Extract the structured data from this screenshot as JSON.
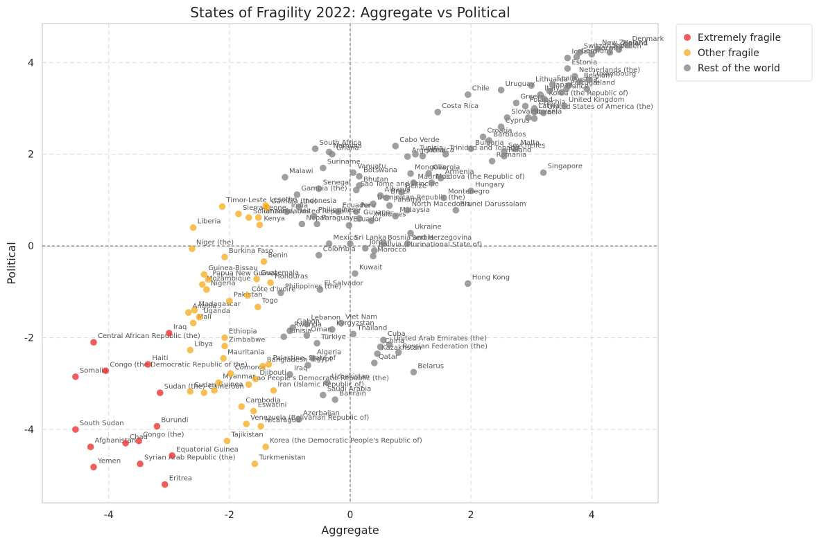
{
  "chart_data": {
    "type": "scatter",
    "title": "States of Fragility 2022: Aggregate vs Political",
    "xlabel": "Aggregate",
    "ylabel": "Political",
    "xlim": [
      -5.1,
      5.1
    ],
    "ylim": [
      -5.6,
      4.85
    ],
    "xticks": [
      -4,
      -2,
      0,
      2,
      4
    ],
    "yticks": [
      -4,
      -2,
      0,
      2,
      4
    ],
    "grid": true,
    "legend_position": "outside-top-right",
    "series": [
      {
        "name": "Extremely fragile",
        "color": "#e8282a",
        "points": [
          {
            "label": "Central African Republic (the)",
            "x": -4.25,
            "y": -2.1
          },
          {
            "label": "Somalia",
            "x": -4.55,
            "y": -2.85
          },
          {
            "label": "Congo (the Democratic Republic of the)",
            "x": -4.05,
            "y": -2.72
          },
          {
            "label": "Iraq",
            "x": -3.0,
            "y": -1.9
          },
          {
            "label": "Haiti",
            "x": -3.35,
            "y": -2.58
          },
          {
            "label": "Sudan (the)",
            "x": -3.15,
            "y": -3.2
          },
          {
            "label": "South Sudan",
            "x": -4.55,
            "y": -4.0
          },
          {
            "label": "Burundi",
            "x": -3.2,
            "y": -3.93
          },
          {
            "label": "Chad",
            "x": -3.72,
            "y": -4.3
          },
          {
            "label": "Congo (the)",
            "x": -3.5,
            "y": -4.25
          },
          {
            "label": "Afghanistan",
            "x": -4.3,
            "y": -4.38
          },
          {
            "label": "Equatorial Guinea",
            "x": -2.95,
            "y": -4.57
          },
          {
            "label": "Syrian Arab Republic (the)",
            "x": -3.48,
            "y": -4.75
          },
          {
            "label": "Yemen",
            "x": -4.25,
            "y": -4.82
          },
          {
            "label": "Eritrea",
            "x": -3.07,
            "y": -5.2
          }
        ]
      },
      {
        "name": "Other fragile",
        "color": "#f6a91b",
        "points": [
          {
            "label": "Timor-Leste",
            "x": -2.12,
            "y": 0.86
          },
          {
            "label": "Sierra Leone",
            "x": -1.85,
            "y": 0.7
          },
          {
            "label": "Lesotho",
            "x": -1.4,
            "y": 0.88
          },
          {
            "label": "Gambia (the)",
            "x": -1.38,
            "y": 0.84
          },
          {
            "label": "Solomon Islands",
            "x": -1.68,
            "y": 0.62
          },
          {
            "label": "Tanzania, United Republic of",
            "x": -1.52,
            "y": 0.62
          },
          {
            "label": "Kenya",
            "x": -1.5,
            "y": 0.46
          },
          {
            "label": "Liberia",
            "x": -2.6,
            "y": 0.4
          },
          {
            "label": "Niger (the)",
            "x": -2.62,
            "y": -0.06
          },
          {
            "label": "Burkina Faso",
            "x": -2.08,
            "y": -0.24
          },
          {
            "label": "Benin",
            "x": -1.43,
            "y": -0.34
          },
          {
            "label": "Guinea-Bissau",
            "x": -2.42,
            "y": -0.62
          },
          {
            "label": "Papua New Guinea",
            "x": -2.35,
            "y": -0.73
          },
          {
            "label": "Guatemala",
            "x": -1.55,
            "y": -0.72
          },
          {
            "label": "Mozambique",
            "x": -2.45,
            "y": -0.84
          },
          {
            "label": "Honduras",
            "x": -1.32,
            "y": -0.8
          },
          {
            "label": "Nigeria",
            "x": -2.38,
            "y": -0.95
          },
          {
            "label": "Côte d'Ivoire",
            "x": -1.7,
            "y": -1.08
          },
          {
            "label": "Pakistan",
            "x": -2.0,
            "y": -1.2
          },
          {
            "label": "Madagascar",
            "x": -2.58,
            "y": -1.4
          },
          {
            "label": "Angola",
            "x": -2.68,
            "y": -1.45
          },
          {
            "label": "Togo",
            "x": -1.53,
            "y": -1.33
          },
          {
            "label": "Uganda",
            "x": -2.5,
            "y": -1.55
          },
          {
            "label": "Mali",
            "x": -2.6,
            "y": -1.68
          },
          {
            "label": "Ethiopia",
            "x": -2.08,
            "y": -2.0
          },
          {
            "label": "Zimbabwe",
            "x": -2.08,
            "y": -2.18
          },
          {
            "label": "Libya",
            "x": -2.65,
            "y": -2.27
          },
          {
            "label": "Mauritania",
            "x": -2.1,
            "y": -2.45
          },
          {
            "label": "Bangladesh",
            "x": -1.45,
            "y": -2.62
          },
          {
            "label": "Palestine, State of",
            "x": -1.35,
            "y": -2.58
          },
          {
            "label": "Comoros",
            "x": -1.98,
            "y": -2.78
          },
          {
            "label": "Djibouti",
            "x": -1.57,
            "y": -2.9
          },
          {
            "label": "Myanmar",
            "x": -2.18,
            "y": -2.98
          },
          {
            "label": "Lao People's Democratic Republic (the)",
            "x": -1.68,
            "y": -3.02
          },
          {
            "label": "Guinea",
            "x": -2.25,
            "y": -3.15
          },
          {
            "label": "Cameroon",
            "x": -2.42,
            "y": -3.2
          },
          {
            "label": "Iran (Islamic Republic of)",
            "x": -1.27,
            "y": -3.15
          },
          {
            "label": "Sudan",
            "x": -2.65,
            "y": -3.17
          },
          {
            "label": "Cambodia",
            "x": -1.8,
            "y": -3.5
          },
          {
            "label": "Eswatini",
            "x": -1.6,
            "y": -3.6
          },
          {
            "label": "Venezuela (Bolivarian Republic of)",
            "x": -1.72,
            "y": -3.88
          },
          {
            "label": "Nicaragua",
            "x": -1.48,
            "y": -3.93
          },
          {
            "label": "Tajikistan",
            "x": -2.04,
            "y": -4.25
          },
          {
            "label": "Korea (the Democratic People's Republic of)",
            "x": -1.4,
            "y": -4.38
          },
          {
            "label": "Turkmenistan",
            "x": -1.58,
            "y": -4.75
          }
        ]
      },
      {
        "name": "Rest of the world",
        "color": "#7f7f7f",
        "points": [
          {
            "label": "New Zealand",
            "x": 4.1,
            "y": 4.3
          },
          {
            "label": "Denmark",
            "x": 4.6,
            "y": 4.38
          },
          {
            "label": "Finland",
            "x": 4.45,
            "y": 4.28
          },
          {
            "label": "Sweden",
            "x": 4.3,
            "y": 4.22
          },
          {
            "label": "Switzerland",
            "x": 3.8,
            "y": 4.22
          },
          {
            "label": "Norway",
            "x": 4.0,
            "y": 4.18
          },
          {
            "label": "Germany",
            "x": 3.75,
            "y": 4.12
          },
          {
            "label": "Iceland",
            "x": 3.6,
            "y": 4.1
          },
          {
            "label": "Estonia",
            "x": 3.6,
            "y": 3.87
          },
          {
            "label": "Netherlands (the)",
            "x": 3.72,
            "y": 3.7
          },
          {
            "label": "Luxembourg",
            "x": 3.95,
            "y": 3.62
          },
          {
            "label": "Belgium",
            "x": 3.8,
            "y": 3.58
          },
          {
            "label": "Austria",
            "x": 3.62,
            "y": 3.5
          },
          {
            "label": "Portugal",
            "x": 3.58,
            "y": 3.42
          },
          {
            "label": "Ireland",
            "x": 3.92,
            "y": 3.42
          },
          {
            "label": "Spain",
            "x": 3.35,
            "y": 3.52
          },
          {
            "label": "Lithuania",
            "x": 3.0,
            "y": 3.5
          },
          {
            "label": "Japan",
            "x": 3.3,
            "y": 3.38
          },
          {
            "label": "France",
            "x": 3.5,
            "y": 3.35
          },
          {
            "label": "Italy",
            "x": 3.15,
            "y": 3.3
          },
          {
            "label": "Korea (the Republic of)",
            "x": 3.22,
            "y": 3.2
          },
          {
            "label": "Uruguay",
            "x": 2.5,
            "y": 3.4
          },
          {
            "label": "Chile",
            "x": 1.95,
            "y": 3.3
          },
          {
            "label": "Greece",
            "x": 2.75,
            "y": 3.12
          },
          {
            "label": "Poland",
            "x": 2.9,
            "y": 3.05
          },
          {
            "label": "Czechia",
            "x": 3.05,
            "y": 3.0
          },
          {
            "label": "Latvia",
            "x": 3.05,
            "y": 2.92
          },
          {
            "label": "United Kingdom",
            "x": 3.55,
            "y": 3.05
          },
          {
            "label": "Slovakia",
            "x": 2.6,
            "y": 2.8
          },
          {
            "label": "Slovenia",
            "x": 2.95,
            "y": 2.8
          },
          {
            "label": "Israel",
            "x": 3.05,
            "y": 2.78
          },
          {
            "label": "United States of America (the)",
            "x": 3.2,
            "y": 2.9
          },
          {
            "label": "Costa Rica",
            "x": 1.45,
            "y": 2.92
          },
          {
            "label": "Cyprus",
            "x": 2.5,
            "y": 2.6
          },
          {
            "label": "Croatia",
            "x": 2.2,
            "y": 2.38
          },
          {
            "label": "Barbados",
            "x": 2.3,
            "y": 2.3
          },
          {
            "label": "Bulgaria",
            "x": 2.0,
            "y": 2.12
          },
          {
            "label": "Malta",
            "x": 2.75,
            "y": 2.12
          },
          {
            "label": "Seychelles",
            "x": 2.55,
            "y": 2.06
          },
          {
            "label": "Poland",
            "x": 2.55,
            "y": 1.96
          },
          {
            "label": "Trinidad and Tobago",
            "x": 1.58,
            "y": 2.0
          },
          {
            "label": "Romania",
            "x": 2.35,
            "y": 1.85
          },
          {
            "label": "Cabo Verde",
            "x": 0.75,
            "y": 2.18
          },
          {
            "label": "Argentina",
            "x": 0.95,
            "y": 1.95
          },
          {
            "label": "Jamaica",
            "x": 1.2,
            "y": 1.96
          },
          {
            "label": "Tunisia",
            "x": 1.08,
            "y": 2.0
          },
          {
            "label": "Singapore",
            "x": 3.2,
            "y": 1.6
          },
          {
            "label": "South Africa",
            "x": -0.58,
            "y": 2.12
          },
          {
            "label": "Namibia",
            "x": -0.35,
            "y": 2.05
          },
          {
            "label": "Ghana",
            "x": -0.3,
            "y": 2.0
          },
          {
            "label": "Suriname",
            "x": -0.45,
            "y": 1.7
          },
          {
            "label": "Malawi",
            "x": -1.08,
            "y": 1.5
          },
          {
            "label": "Vanuatu",
            "x": 0.05,
            "y": 1.6
          },
          {
            "label": "Botswana",
            "x": 0.15,
            "y": 1.52
          },
          {
            "label": "Mongolia",
            "x": 1.0,
            "y": 1.58
          },
          {
            "label": "Georgia",
            "x": 1.3,
            "y": 1.58
          },
          {
            "label": "Armenia",
            "x": 1.5,
            "y": 1.48
          },
          {
            "label": "Mauritius",
            "x": 1.05,
            "y": 1.38
          },
          {
            "label": "Moldova (the Republic of)",
            "x": 1.35,
            "y": 1.38
          },
          {
            "label": "Hungary",
            "x": 2.0,
            "y": 1.2
          },
          {
            "label": "Bhutan",
            "x": 0.15,
            "y": 1.32
          },
          {
            "label": "Sao Tome and Principe",
            "x": 0.1,
            "y": 1.22
          },
          {
            "label": "Senegal",
            "x": -0.52,
            "y": 1.25
          },
          {
            "label": "Belize",
            "x": 0.85,
            "y": 1.17
          },
          {
            "label": "Albania",
            "x": 0.5,
            "y": 1.1
          },
          {
            "label": "Brazil",
            "x": 0.6,
            "y": 1.05
          },
          {
            "label": "Montenegro",
            "x": 1.55,
            "y": 1.05
          },
          {
            "label": "Gambia (the)",
            "x": -0.88,
            "y": 1.12
          },
          {
            "label": "Dominican Republic (the)",
            "x": 0.38,
            "y": 0.92
          },
          {
            "label": "Panama",
            "x": 0.65,
            "y": 0.88
          },
          {
            "label": "Indonesia",
            "x": -0.85,
            "y": 0.85
          },
          {
            "label": "Brunei Darussalam",
            "x": 1.75,
            "y": 0.78
          },
          {
            "label": "North Macedonia",
            "x": 0.95,
            "y": 0.78
          },
          {
            "label": "India",
            "x": -1.05,
            "y": 0.75
          },
          {
            "label": "Ecuador",
            "x": -0.2,
            "y": 0.75
          },
          {
            "label": "Peru",
            "x": 0.1,
            "y": 0.75
          },
          {
            "label": "Malaysia",
            "x": 0.75,
            "y": 0.65
          },
          {
            "label": "Philippines",
            "x": -0.6,
            "y": 0.65
          },
          {
            "label": "Nepal",
            "x": -0.8,
            "y": 0.48
          },
          {
            "label": "Paraguay",
            "x": -0.55,
            "y": 0.48
          },
          {
            "label": "Guyana",
            "x": 0.15,
            "y": 0.6
          },
          {
            "label": "Maldives",
            "x": 0.35,
            "y": 0.55
          },
          {
            "label": "Ecuador",
            "x": -0.02,
            "y": 0.45
          },
          {
            "label": "Ukraine",
            "x": 1.0,
            "y": 0.28
          },
          {
            "label": "Mexico",
            "x": -0.35,
            "y": 0.05
          },
          {
            "label": "Sri Lanka",
            "x": 0.0,
            "y": 0.05
          },
          {
            "label": "Bosnia and Herzegovina",
            "x": 0.55,
            "y": 0.05
          },
          {
            "label": "Serbia",
            "x": 0.95,
            "y": 0.05
          },
          {
            "label": "Jordan",
            "x": 0.25,
            "y": -0.05
          },
          {
            "label": "Bolivia (Plurinational State of)",
            "x": 0.4,
            "y": -0.1
          },
          {
            "label": "Colombia",
            "x": -0.52,
            "y": -0.2
          },
          {
            "label": "Morocco",
            "x": 0.38,
            "y": -0.22
          },
          {
            "label": "Kuwait",
            "x": 0.08,
            "y": -0.6
          },
          {
            "label": "Hong Kong",
            "x": 1.95,
            "y": -0.82
          },
          {
            "label": "El Salvador",
            "x": -0.5,
            "y": -0.95
          },
          {
            "label": "Philippines (the)",
            "x": -1.15,
            "y": -1.02
          },
          {
            "label": "Lebanon",
            "x": -0.72,
            "y": -1.7
          },
          {
            "label": "Viet Nam",
            "x": -0.15,
            "y": -1.68
          },
          {
            "label": "Gabon",
            "x": -0.95,
            "y": -1.78
          },
          {
            "label": "Rwanda",
            "x": -1.0,
            "y": -1.85
          },
          {
            "label": "Kyrgyzstan",
            "x": -0.3,
            "y": -1.82
          },
          {
            "label": "Thailand",
            "x": 0.05,
            "y": -1.92
          },
          {
            "label": "Oman",
            "x": -0.72,
            "y": -1.95
          },
          {
            "label": "Tunisia",
            "x": -1.1,
            "y": -1.98
          },
          {
            "label": "Cuba",
            "x": 0.55,
            "y": -2.05
          },
          {
            "label": "Türkiye",
            "x": -0.55,
            "y": -2.12
          },
          {
            "label": "China",
            "x": 0.5,
            "y": -2.2
          },
          {
            "label": "United Arab Emirates (the)",
            "x": 0.65,
            "y": -2.15
          },
          {
            "label": "Kazakhstan",
            "x": 0.45,
            "y": -2.35
          },
          {
            "label": "Russian Federation (the)",
            "x": 0.8,
            "y": -2.32
          },
          {
            "label": "Qatar",
            "x": 0.4,
            "y": -2.55
          },
          {
            "label": "Algeria",
            "x": -0.62,
            "y": -2.45
          },
          {
            "label": "Egypt",
            "x": -0.7,
            "y": -2.6
          },
          {
            "label": "Belarus",
            "x": 1.05,
            "y": -2.75
          },
          {
            "label": "Iraq",
            "x": -1.0,
            "y": -2.8
          },
          {
            "label": "Uzbekistan",
            "x": -0.38,
            "y": -2.98
          },
          {
            "label": "Saudi Arabia",
            "x": -0.45,
            "y": -3.25
          },
          {
            "label": "Bahrain",
            "x": -0.25,
            "y": -3.35
          },
          {
            "label": "Azerbaijan",
            "x": -0.85,
            "y": -3.78
          }
        ]
      }
    ]
  }
}
